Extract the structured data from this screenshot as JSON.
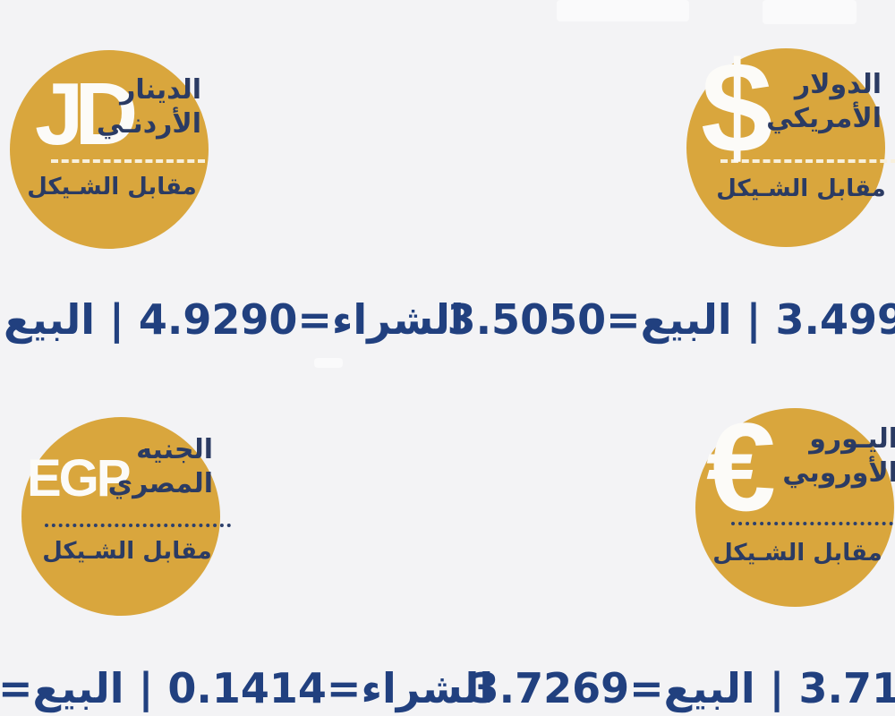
{
  "theme": {
    "background": "#f3f3f5",
    "badge_gold": "#d9a63d",
    "badge_text_navy": "#2b3b63",
    "rate_text_navy": "#21407f",
    "symbol_white": "#fcfbf8"
  },
  "badges": {
    "jod": {
      "symbol": "JD",
      "name_line1": "الدينار",
      "name_line2": "الأردنـي",
      "vs_label": "مقابل الشـيكل",
      "separator_style": "white-dashed"
    },
    "usd": {
      "symbol": "$",
      "name_line1": "الدولار",
      "name_line2": "الأمريكي",
      "vs_label": "مقابل الشـيكل",
      "separator_style": "white-dashed"
    },
    "egp": {
      "symbol": "EGP",
      "name_line1": "الجنيه",
      "name_line2": "المصري",
      "vs_label": "مقابل الشـيكل",
      "separator_style": "navy-dotted"
    },
    "eur": {
      "symbol": "€",
      "name_line1": "اليـورو",
      "name_line2": "الأوروبي",
      "vs_label": "مقابل الشـيكل",
      "separator_style": "navy-dotted"
    }
  },
  "rates": {
    "jod": {
      "display": "الشراء=4.9290 | البيع",
      "buy": "4.9290"
    },
    "usd": {
      "display": "3.499 | البيع=3.5050",
      "sell": "3.5050",
      "buy_visible_partial": "3.499"
    },
    "egp": {
      "display": "الشراء=0.1414 | البيع=",
      "buy": "0.1414"
    },
    "eur": {
      "display": "3.71 | البيع=3.7269",
      "sell": "3.7269",
      "buy_visible_partial": "3.71"
    }
  }
}
